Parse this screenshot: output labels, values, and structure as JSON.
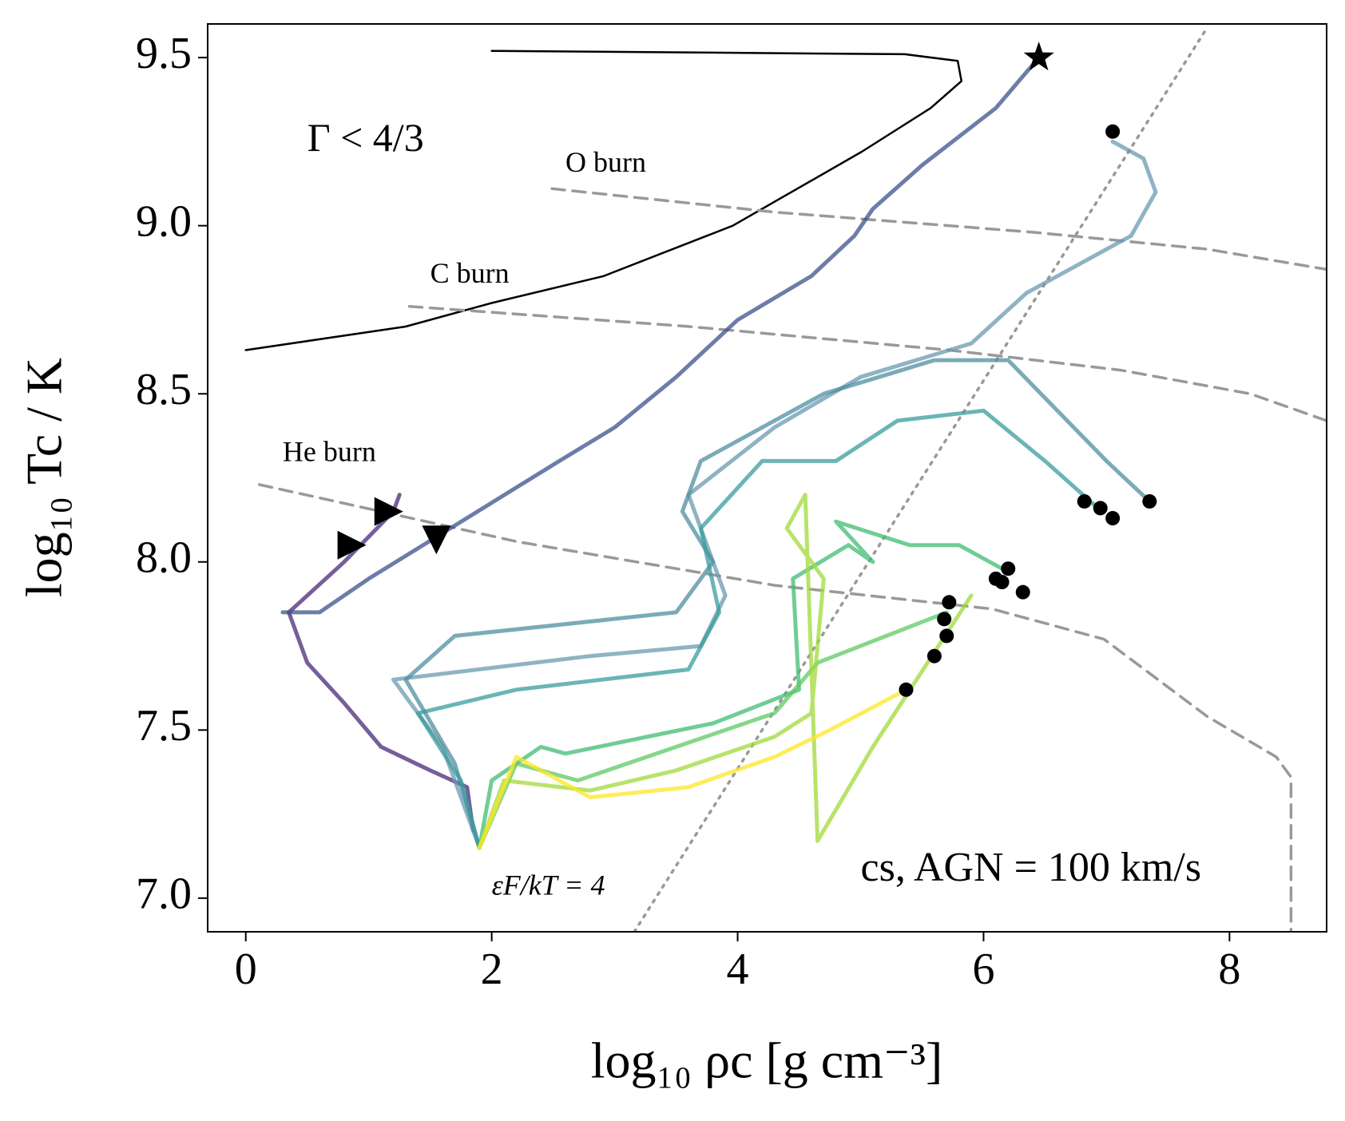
{
  "chart_data": {
    "type": "line",
    "xlabel": "log₁₀ ρc [g cm⁻³]",
    "ylabel": "log₁₀ Tc / K",
    "xlim": [
      -0.31,
      8.79
    ],
    "ylim": [
      6.9,
      9.6
    ],
    "xticks": [
      0,
      2,
      4,
      6,
      8
    ],
    "yticks": [
      {
        "value": 7,
        "label": "7.0"
      },
      7.5,
      {
        "value": 8,
        "label": "8.0"
      },
      8.5,
      {
        "value": 9,
        "label": "9.0"
      },
      9.5
    ],
    "annotations": [
      "Γ < 4/3",
      "O burn",
      "C burn",
      "He burn",
      "εF/kT = 4",
      "cs, AGN = 100 km/s"
    ],
    "reference_lines": [
      {
        "style": "solid",
        "color": "#000000",
        "x": [
          0,
          1.3,
          2.0,
          2.91,
          3.96,
          5.01,
          5.57,
          5.82,
          5.79,
          5.36,
          2.0
        ],
        "y": [
          8.63,
          8.7,
          8.77,
          8.85,
          9.0,
          9.22,
          9.35,
          9.43,
          9.49,
          9.51,
          9.52
        ]
      },
      {
        "style": "dashed",
        "color": "#999999",
        "x": [
          2.49,
          4.31,
          6.42,
          7.82,
          8.79
        ],
        "y": [
          9.11,
          9.04,
          8.98,
          8.93,
          8.87
        ]
      },
      {
        "style": "dashed",
        "color": "#999999",
        "x": [
          1.33,
          3.61,
          5.72,
          7.12,
          8.17,
          8.79
        ],
        "y": [
          8.76,
          8.7,
          8.63,
          8.57,
          8.5,
          8.42
        ]
      },
      {
        "style": "dashed",
        "color": "#999999",
        "x": [
          0.11,
          2.21,
          4.31,
          6.07,
          6.98,
          7.82,
          8.38,
          8.5,
          8.5
        ],
        "y": [
          8.23,
          8.06,
          7.93,
          7.86,
          7.77,
          7.54,
          7.42,
          7.36,
          6.9
        ]
      },
      {
        "style": "dotted",
        "color": "#999999",
        "x": [
          3.16,
          7.82
        ],
        "y": [
          6.9,
          9.59
        ]
      }
    ],
    "series": [
      {
        "color": "#482878",
        "x": [
          1.25,
          1.2,
          0.8,
          0.35,
          0.5,
          0.8,
          1.1,
          1.5,
          1.8,
          1.85
        ],
        "y": [
          8.2,
          8.15,
          8.0,
          7.85,
          7.7,
          7.58,
          7.45,
          7.38,
          7.33,
          7.2
        ]
      },
      {
        "color": "#3b528b",
        "x": [
          0.3,
          0.6,
          1.0,
          2.55,
          3.0,
          3.5,
          4.0,
          4.6,
          4.95,
          5.1,
          5.5,
          6.1,
          6.45
        ],
        "y": [
          7.85,
          7.85,
          7.95,
          8.3,
          8.4,
          8.55,
          8.72,
          8.85,
          8.97,
          9.05,
          9.18,
          9.35,
          9.5
        ]
      },
      {
        "color": "#6a9ab0",
        "x": [
          1.9,
          1.6,
          1.2,
          2.8,
          3.7,
          3.9,
          3.6,
          4.3,
          5.0,
          5.9,
          6.35,
          6.7,
          7.2,
          7.4,
          7.3,
          7.05
        ],
        "y": [
          7.15,
          7.45,
          7.65,
          7.72,
          7.75,
          7.9,
          8.2,
          8.4,
          8.55,
          8.65,
          8.8,
          8.87,
          8.97,
          9.1,
          9.2,
          9.25
        ]
      },
      {
        "color": "#4f8ea0",
        "x": [
          1.9,
          1.7,
          1.3,
          1.7,
          3.5,
          3.8,
          3.55,
          3.7,
          4.7,
          5.6,
          6.2,
          6.6,
          7.0,
          7.35
        ],
        "y": [
          7.15,
          7.4,
          7.65,
          7.78,
          7.85,
          8.0,
          8.15,
          8.3,
          8.5,
          8.6,
          8.6,
          8.45,
          8.3,
          8.18
        ]
      },
      {
        "color": "#3a9c9c",
        "x": [
          1.9,
          1.75,
          1.4,
          2.2,
          3.6,
          3.85,
          3.7,
          4.2,
          4.8,
          5.3,
          6.0,
          6.5,
          6.9
        ],
        "y": [
          7.15,
          7.35,
          7.55,
          7.62,
          7.68,
          7.85,
          8.1,
          8.3,
          8.3,
          8.42,
          8.45,
          8.3,
          8.17
        ]
      },
      {
        "color": "#3fbc73",
        "x": [
          1.9,
          2.0,
          2.4,
          2.6,
          3.8,
          4.5,
          4.45,
          4.9,
          5.1,
          4.8,
          5.4,
          5.8,
          6.2
        ],
        "y": [
          7.15,
          7.35,
          7.45,
          7.43,
          7.52,
          7.62,
          7.95,
          8.05,
          8.0,
          8.12,
          8.05,
          8.05,
          7.97
        ]
      },
      {
        "color": "#5ec962",
        "x": [
          1.9,
          2.2,
          2.7,
          3.5,
          4.3,
          4.65,
          5.7
        ],
        "y": [
          7.15,
          7.4,
          7.35,
          7.45,
          7.55,
          7.7,
          7.85
        ]
      },
      {
        "color": "#a0da39",
        "x": [
          1.9,
          2.1,
          2.8,
          3.5,
          4.3,
          4.6,
          4.7,
          4.4,
          4.55,
          4.65,
          5.1,
          5.9
        ],
        "y": [
          7.15,
          7.35,
          7.32,
          7.38,
          7.48,
          7.55,
          7.95,
          8.1,
          8.2,
          7.17,
          7.45,
          7.9
        ]
      },
      {
        "color": "#fde725",
        "x": [
          1.9,
          2.2,
          2.8,
          3.6,
          4.3,
          4.75,
          5.37
        ],
        "y": [
          7.15,
          7.42,
          7.3,
          7.33,
          7.42,
          7.5,
          7.62
        ]
      }
    ],
    "markers": [
      {
        "marker": "circle",
        "color": "#000000",
        "x": [
          7.05,
          7.35,
          6.82,
          6.95,
          7.05,
          6.1,
          6.2,
          6.15,
          6.32,
          5.72,
          5.68,
          5.7,
          5.6,
          5.37
        ],
        "y": [
          9.28,
          8.18,
          8.18,
          8.16,
          8.13,
          7.95,
          7.98,
          7.94,
          7.91,
          7.88,
          7.83,
          7.78,
          7.72,
          7.62
        ]
      },
      {
        "marker": "star",
        "color": "#000000",
        "x": [
          6.45
        ],
        "y": [
          9.5
        ]
      },
      {
        "marker": "triangle-right",
        "color": "#000000",
        "x": [
          1.15,
          0.85
        ],
        "y": [
          8.15,
          8.05
        ]
      },
      {
        "marker": "triangle-down",
        "color": "#000000",
        "x": [
          1.55
        ],
        "y": [
          8.07
        ]
      }
    ]
  }
}
